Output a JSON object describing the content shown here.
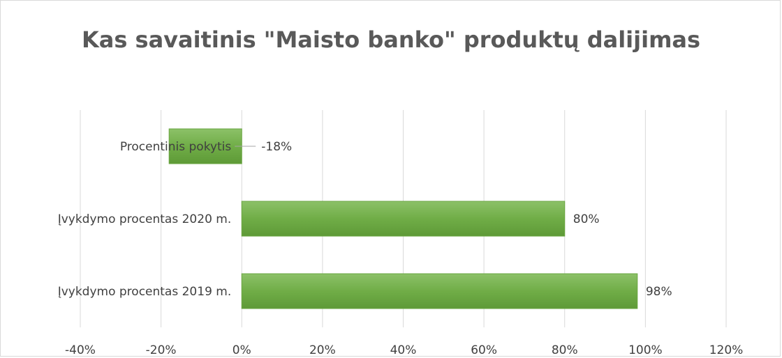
{
  "chart_data": {
    "type": "bar",
    "orientation": "horizontal",
    "title": "Kas savaitinis \"Maisto banko\" produktų dalijimas",
    "categories": [
      "Įvykdymo procentas 2019 m.",
      "Įvykdymo procentas 2020 m.",
      "Procentinis pokytis"
    ],
    "values": [
      0.98,
      0.8,
      -0.18
    ],
    "data_labels": [
      "98%",
      "80%",
      "-18%"
    ],
    "xlim": [
      -0.4,
      1.2
    ],
    "x_ticks": [
      -0.4,
      -0.2,
      0,
      0.2,
      0.4,
      0.6,
      0.8,
      1.0,
      1.2
    ],
    "x_tick_labels": [
      "-40%",
      "-20%",
      "0%",
      "20%",
      "40%",
      "60%",
      "80%",
      "100%",
      "120%"
    ],
    "grid": "vertical",
    "bar_color": "#70ad47",
    "legend": "none"
  }
}
